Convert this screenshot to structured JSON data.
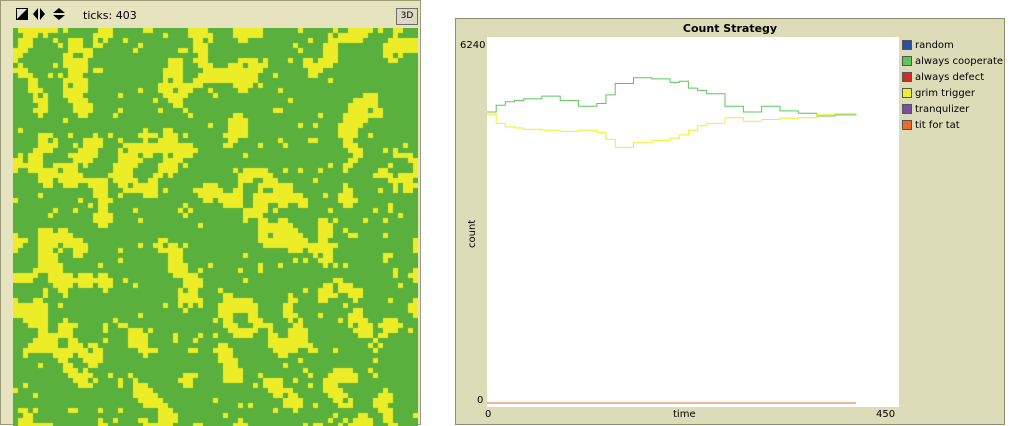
{
  "world": {
    "ticks_label": "ticks:",
    "ticks_value": "403",
    "three_d_label": "3D",
    "icons": [
      "shape-toggle-icon",
      "horizontal-resize-icon",
      "vertical-resize-icon"
    ],
    "colors": {
      "green": "#59b03c",
      "yellow": "#eced27"
    }
  },
  "chart_data": {
    "type": "line",
    "title": "Count Strategy",
    "xlabel": "time",
    "ylabel": "count",
    "xlim": [
      0,
      450
    ],
    "ylim": [
      0,
      6240
    ],
    "x_min_label": "0",
    "x_max_label": "450",
    "y_min_label": "0",
    "y_max_label": "6240",
    "legend_position": "right",
    "grid": false,
    "series": [
      {
        "name": "random",
        "color": "#2b4ea3",
        "x": [
          0,
          403
        ],
        "values": [
          0,
          0
        ]
      },
      {
        "name": "always cooperate",
        "color": "#59c85a",
        "x": [
          0,
          10,
          20,
          30,
          40,
          60,
          80,
          100,
          120,
          130,
          140,
          160,
          180,
          200,
          210,
          220,
          230,
          240,
          260,
          280,
          300,
          320,
          340,
          360,
          380,
          403
        ],
        "values": [
          5100,
          5220,
          5280,
          5300,
          5330,
          5380,
          5300,
          5200,
          5250,
          5400,
          5600,
          5700,
          5680,
          5620,
          5640,
          5520,
          5480,
          5420,
          5200,
          5100,
          5200,
          5120,
          5080,
          5030,
          5050,
          5060
        ]
      },
      {
        "name": "always defect",
        "color": "#d42b2b",
        "x": [
          0,
          403
        ],
        "values": [
          0,
          0
        ]
      },
      {
        "name": "grim trigger",
        "color": "#f0ee2a",
        "x": [
          0,
          10,
          20,
          30,
          40,
          60,
          80,
          100,
          120,
          130,
          140,
          160,
          180,
          200,
          210,
          220,
          230,
          240,
          260,
          280,
          300,
          320,
          340,
          360,
          380,
          403
        ],
        "values": [
          5060,
          4900,
          4840,
          4820,
          4800,
          4780,
          4760,
          4780,
          4740,
          4620,
          4480,
          4560,
          4600,
          4640,
          4700,
          4780,
          4860,
          4900,
          5000,
          4940,
          4970,
          4990,
          5000,
          5060,
          5070,
          5060
        ]
      },
      {
        "name": "tranqulizer",
        "color": "#7b4ea3",
        "x": [
          0,
          403
        ],
        "values": [
          0,
          0
        ]
      },
      {
        "name": "tit for tat",
        "color": "#ee6a2b",
        "x": [
          0,
          403
        ],
        "values": [
          0,
          0
        ]
      }
    ]
  }
}
